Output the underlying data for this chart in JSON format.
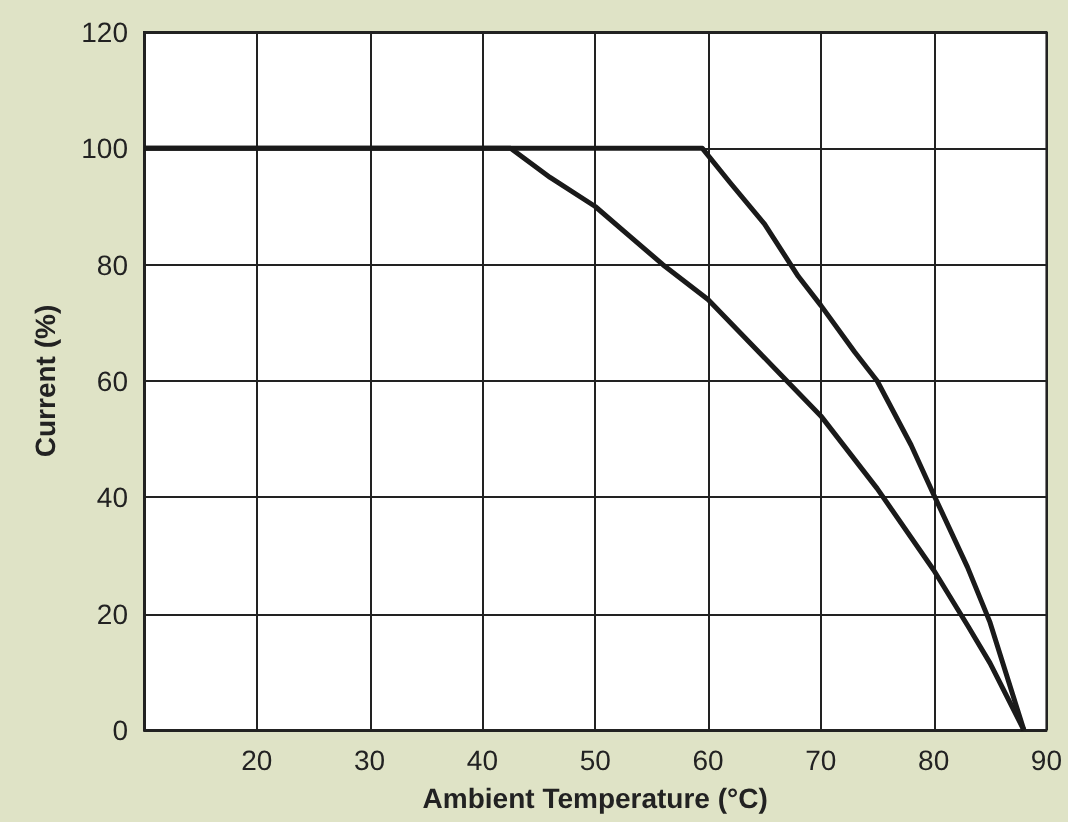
{
  "chart_data": {
    "type": "line",
    "xlabel": "Ambient Temperature (°C)",
    "ylabel": "Current (%)",
    "series": [
      {
        "color": "#1a1a1a",
        "x": [
          10,
          42.5,
          46,
          50,
          53,
          56,
          60,
          63,
          66.5,
          70,
          75,
          80,
          83,
          85,
          88
        ],
        "values": [
          100,
          100,
          95,
          90,
          85,
          80,
          74,
          68,
          61,
          54,
          41.5,
          27.5,
          18,
          11.5,
          0
        ]
      },
      {
        "color": "#1a1a1a",
        "x": [
          10,
          59.5,
          62,
          65,
          68,
          70,
          73,
          75,
          78,
          80,
          83,
          85,
          88
        ],
        "values": [
          100,
          100,
          94,
          87,
          78,
          73,
          65,
          60,
          49,
          40.5,
          28,
          18.5,
          0
        ]
      }
    ],
    "xlim": [
      10,
      90
    ],
    "xticks": [
      {
        "value": 10,
        "label": null
      },
      20,
      30,
      40,
      50,
      60,
      70,
      80,
      90
    ],
    "ylim": [
      0,
      120
    ],
    "yticks": [
      0,
      20,
      40,
      60,
      80,
      100,
      120
    ],
    "grid": true,
    "marker": "none",
    "line_style": "solid"
  }
}
